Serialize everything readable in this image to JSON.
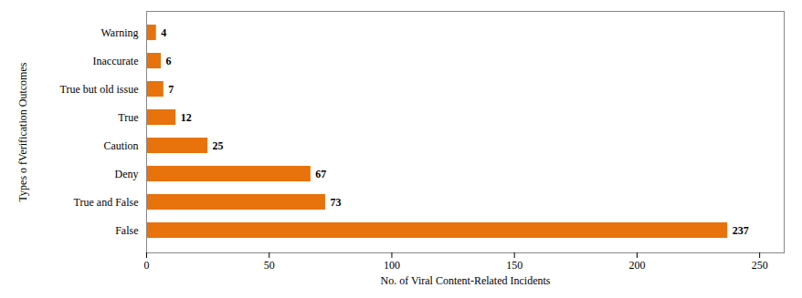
{
  "chart_data": {
    "type": "bar",
    "orientation": "horizontal",
    "categories": [
      "False",
      "True and False",
      "Deny",
      "Caution",
      "True",
      "True but old issue",
      "Inaccurate",
      "Warning"
    ],
    "values": [
      237,
      73,
      67,
      25,
      12,
      7,
      6,
      4
    ],
    "color": "#E8720C",
    "xlabel": "No. of Viral Content-Related Incidents",
    "ylabel": "Types o fVerification Outcomes",
    "xlim": [
      0,
      260
    ],
    "xticks": [
      0,
      50,
      100,
      150,
      200,
      250
    ],
    "data_labels": true
  }
}
